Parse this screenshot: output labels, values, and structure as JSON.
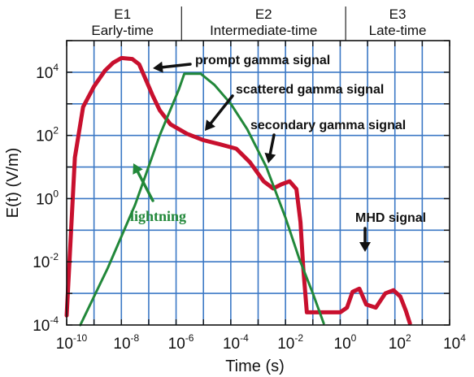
{
  "chart_data": {
    "type": "line",
    "x_scale": "log",
    "y_scale": "log",
    "xlabel": "Time (s)",
    "ylabel": "E(t) (V/m)",
    "xlim_exp": [
      -10,
      4
    ],
    "ylim_exp": [
      -4,
      5
    ],
    "x_tick_labels": [
      {
        "base": "10",
        "exp": "-10"
      },
      {
        "base": "10",
        "exp": "-8"
      },
      {
        "base": "10",
        "exp": "-6"
      },
      {
        "base": "10",
        "exp": "-4"
      },
      {
        "base": "10",
        "exp": "-2"
      },
      {
        "base": "10",
        "exp": "0"
      },
      {
        "base": "10",
        "exp": "2"
      },
      {
        "base": "10",
        "exp": "4"
      }
    ],
    "y_tick_labels": [
      {
        "base": "10",
        "exp": "-4"
      },
      {
        "base": "10",
        "exp": "-2"
      },
      {
        "base": "10",
        "exp": "0"
      },
      {
        "base": "10",
        "exp": "2"
      },
      {
        "base": "10",
        "exp": "4"
      }
    ],
    "regions": [
      {
        "code": "E1",
        "name": "Early-time"
      },
      {
        "code": "E2",
        "name": "Intermediate-time"
      },
      {
        "code": "E3",
        "name": "Late-time"
      }
    ],
    "region_boundaries_log_t": [
      -5.8,
      0.2
    ],
    "grid": true,
    "series": [
      {
        "key": "hemp",
        "color": "#c8102e",
        "points_log": [
          [
            -10,
            -3.7
          ],
          [
            -9.7,
            1.3
          ],
          [
            -9.4,
            2.9
          ],
          [
            -9.0,
            3.55
          ],
          [
            -8.6,
            4.05
          ],
          [
            -8.3,
            4.3
          ],
          [
            -8.0,
            4.45
          ],
          [
            -7.6,
            4.42
          ],
          [
            -7.35,
            4.25
          ],
          [
            -7.1,
            3.75
          ],
          [
            -6.85,
            3.25
          ],
          [
            -6.6,
            2.8
          ],
          [
            -6.2,
            2.35
          ],
          [
            -5.6,
            2.05
          ],
          [
            -5.0,
            1.85
          ],
          [
            -4.4,
            1.72
          ],
          [
            -3.8,
            1.58
          ],
          [
            -3.3,
            1.15
          ],
          [
            -2.8,
            0.55
          ],
          [
            -2.45,
            0.32
          ],
          [
            -2.15,
            0.45
          ],
          [
            -1.85,
            0.55
          ],
          [
            -1.6,
            0.3
          ],
          [
            -1.45,
            -0.75
          ],
          [
            -1.35,
            -2.2
          ],
          [
            -1.22,
            -3.6
          ],
          [
            -0.9,
            -3.6
          ],
          [
            0.0,
            -3.6
          ],
          [
            0.25,
            -3.45
          ],
          [
            0.45,
            -2.95
          ],
          [
            0.7,
            -2.85
          ],
          [
            0.95,
            -3.35
          ],
          [
            1.3,
            -3.45
          ],
          [
            1.65,
            -3.0
          ],
          [
            1.95,
            -2.9
          ],
          [
            2.2,
            -3.1
          ],
          [
            2.4,
            -3.55
          ],
          [
            2.55,
            -3.95
          ]
        ]
      },
      {
        "key": "lightning",
        "color": "#22883a",
        "points_log": [
          [
            -9.5,
            -4.0
          ],
          [
            -8.5,
            -2.2
          ],
          [
            -7.5,
            -0.2
          ],
          [
            -6.6,
            2.0
          ],
          [
            -5.9,
            3.45
          ],
          [
            -5.7,
            3.95
          ],
          [
            -5.1,
            3.95
          ],
          [
            -4.6,
            3.6
          ],
          [
            -4.0,
            3.0
          ],
          [
            -3.4,
            2.2
          ],
          [
            -2.7,
            1.0
          ],
          [
            -2.0,
            -0.6
          ],
          [
            -1.5,
            -1.9
          ],
          [
            -1.0,
            -3.0
          ],
          [
            -0.6,
            -3.95
          ]
        ]
      }
    ],
    "annotations": [
      {
        "text": "prompt gamma signal",
        "color": "#111111"
      },
      {
        "text": "scattered gamma signal",
        "color": "#111111"
      },
      {
        "text": "secondary gamma signal",
        "color": "#111111"
      },
      {
        "text": "lightning",
        "color": "#22883a"
      },
      {
        "text": "MHD signal",
        "color": "#111111"
      }
    ]
  }
}
